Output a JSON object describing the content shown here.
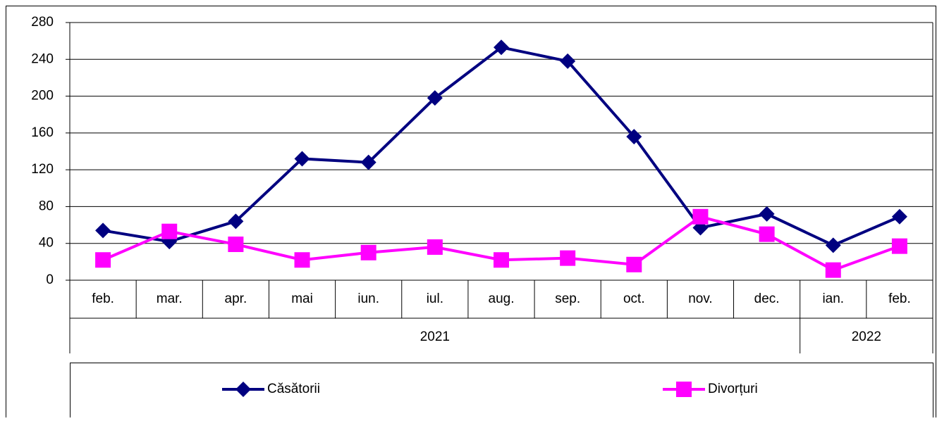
{
  "chart_data": {
    "type": "line",
    "categories": [
      "feb.",
      "mar.",
      "apr.",
      "mai",
      "iun.",
      "iul.",
      "aug.",
      "sep.",
      "oct.",
      "nov.",
      "dec.",
      "ian.",
      "feb."
    ],
    "groups": [
      {
        "label": "2021",
        "span": 11
      },
      {
        "label": "2022",
        "span": 2
      }
    ],
    "series": [
      {
        "name": "Căsătorii",
        "color": "#000080",
        "marker": "diamond",
        "values": [
          54,
          42,
          64,
          132,
          128,
          198,
          253,
          238,
          156,
          57,
          72,
          38,
          69
        ]
      },
      {
        "name": "Divorțuri",
        "color": "#ff00ff",
        "marker": "square",
        "values": [
          22,
          53,
          39,
          22,
          30,
          36,
          22,
          24,
          17,
          69,
          50,
          11,
          37
        ]
      }
    ],
    "ylim": [
      0,
      280
    ],
    "yticks": [
      0,
      40,
      80,
      120,
      160,
      200,
      240,
      280
    ],
    "grid": true
  }
}
